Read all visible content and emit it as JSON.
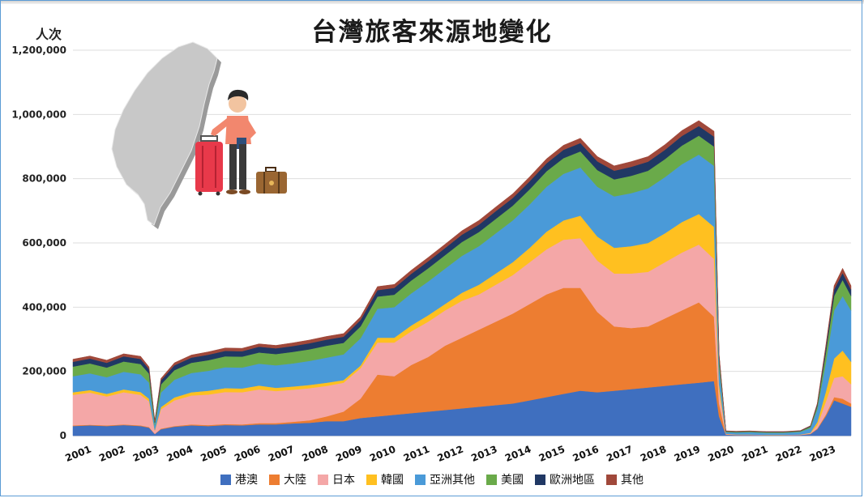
{
  "chart_data": {
    "type": "area",
    "title": "台灣旅客來源地變化",
    "ylabel": "人次",
    "ylim": [
      0,
      1200000
    ],
    "y_ticks": [
      "0",
      "200,000",
      "400,000",
      "600,000",
      "800,000",
      "1,000,000",
      "1,200,000"
    ],
    "y_tick_values": [
      0,
      200000,
      400000,
      600000,
      800000,
      1000000,
      1200000
    ],
    "x_ticks": [
      "2001",
      "2002",
      "2003",
      "2004",
      "2005",
      "2006",
      "2007",
      "2008",
      "2009",
      "2010",
      "2011",
      "2012",
      "2013",
      "2014",
      "2015",
      "2016",
      "2017",
      "2018",
      "2019",
      "2020",
      "2021",
      "2022",
      "2023"
    ],
    "x_range": [
      2001,
      2024
    ],
    "grid": true,
    "legend_position": "bottom",
    "x": [
      2001.0,
      2001.5,
      2002.0,
      2002.5,
      2003.0,
      2003.25,
      2003.42,
      2003.6,
      2004.0,
      2004.5,
      2005.0,
      2005.5,
      2006.0,
      2006.5,
      2007.0,
      2007.5,
      2008.0,
      2008.5,
      2009.0,
      2009.5,
      2010.0,
      2010.5,
      2011.0,
      2011.5,
      2012.0,
      2012.5,
      2013.0,
      2013.5,
      2014.0,
      2014.5,
      2015.0,
      2015.5,
      2016.0,
      2016.5,
      2017.0,
      2017.5,
      2018.0,
      2018.5,
      2019.0,
      2019.5,
      2019.95,
      2020.1,
      2020.3,
      2020.6,
      2021.0,
      2021.5,
      2022.0,
      2022.5,
      2022.8,
      2023.0,
      2023.25,
      2023.5,
      2023.75,
      2024.0
    ],
    "series": [
      {
        "name": "港澳",
        "color": "#3f6fbf",
        "values": [
          30000,
          32000,
          30000,
          33000,
          30000,
          25000,
          5000,
          20000,
          28000,
          32000,
          30000,
          33000,
          32000,
          35000,
          35000,
          38000,
          40000,
          45000,
          45000,
          55000,
          60000,
          65000,
          70000,
          75000,
          80000,
          85000,
          90000,
          95000,
          100000,
          110000,
          120000,
          130000,
          140000,
          135000,
          140000,
          145000,
          150000,
          155000,
          160000,
          165000,
          170000,
          60000,
          3000,
          2000,
          2000,
          1500,
          1500,
          2000,
          5000,
          20000,
          60000,
          110000,
          100000,
          90000
        ]
      },
      {
        "name": "大陸",
        "color": "#ed7d31",
        "values": [
          2000,
          2000,
          2000,
          2000,
          2000,
          2000,
          500,
          2000,
          2000,
          3000,
          3000,
          3000,
          3000,
          4000,
          4000,
          5000,
          8000,
          15000,
          30000,
          60000,
          130000,
          120000,
          150000,
          170000,
          200000,
          220000,
          240000,
          260000,
          280000,
          300000,
          320000,
          330000,
          320000,
          250000,
          200000,
          190000,
          190000,
          210000,
          230000,
          250000,
          200000,
          40000,
          1000,
          500,
          500,
          300,
          300,
          500,
          1000,
          2000,
          5000,
          10000,
          15000,
          10000
        ]
      },
      {
        "name": "日本",
        "color": "#f4a7a7",
        "values": [
          95000,
          100000,
          90000,
          100000,
          95000,
          80000,
          10000,
          60000,
          80000,
          90000,
          95000,
          100000,
          100000,
          105000,
          100000,
          100000,
          100000,
          95000,
          90000,
          95000,
          100000,
          105000,
          105000,
          110000,
          110000,
          115000,
          110000,
          115000,
          120000,
          130000,
          140000,
          150000,
          155000,
          160000,
          165000,
          170000,
          170000,
          175000,
          180000,
          180000,
          180000,
          40000,
          1500,
          1000,
          1000,
          800,
          800,
          1000,
          2000,
          10000,
          40000,
          60000,
          70000,
          60000
        ]
      },
      {
        "name": "韓國",
        "color": "#ffc020",
        "values": [
          8000,
          8000,
          8000,
          9000,
          9000,
          8000,
          2000,
          7000,
          9000,
          10000,
          12000,
          12000,
          12000,
          12000,
          10000,
          10000,
          10000,
          10000,
          8000,
          8000,
          15000,
          15000,
          18000,
          20000,
          20000,
          25000,
          30000,
          35000,
          40000,
          45000,
          55000,
          60000,
          70000,
          75000,
          80000,
          85000,
          90000,
          90000,
          95000,
          95000,
          100000,
          20000,
          500,
          300,
          300,
          200,
          200,
          300,
          1000,
          10000,
          30000,
          60000,
          80000,
          70000
        ]
      },
      {
        "name": "亞洲其他",
        "color": "#4a9ad8",
        "values": [
          50000,
          52000,
          52000,
          55000,
          55000,
          50000,
          15000,
          45000,
          55000,
          60000,
          62000,
          65000,
          65000,
          68000,
          70000,
          72000,
          75000,
          78000,
          80000,
          85000,
          90000,
          95000,
          100000,
          105000,
          110000,
          115000,
          120000,
          125000,
          130000,
          135000,
          140000,
          145000,
          150000,
          155000,
          160000,
          165000,
          170000,
          175000,
          180000,
          185000,
          190000,
          60000,
          5000,
          6000,
          7000,
          6000,
          6000,
          8000,
          15000,
          40000,
          90000,
          150000,
          170000,
          160000
        ]
      },
      {
        "name": "美國",
        "color": "#6aaa4a",
        "values": [
          30000,
          31000,
          30000,
          32000,
          32000,
          28000,
          8000,
          25000,
          30000,
          32000,
          33000,
          34000,
          34000,
          35000,
          35000,
          36000,
          36000,
          37000,
          36000,
          37000,
          38000,
          39000,
          40000,
          41000,
          42000,
          43000,
          44000,
          45000,
          46000,
          47000,
          48000,
          49000,
          50000,
          52000,
          53000,
          54000,
          55000,
          56000,
          58000,
          59000,
          60000,
          20000,
          2000,
          2000,
          2000,
          2000,
          2000,
          2000,
          4000,
          10000,
          30000,
          45000,
          50000,
          45000
        ]
      },
      {
        "name": "歐洲地區",
        "color": "#203864",
        "values": [
          15000,
          15000,
          15000,
          16000,
          16000,
          14000,
          4000,
          13000,
          15000,
          16000,
          17000,
          17000,
          17000,
          18000,
          18000,
          18000,
          19000,
          19000,
          19000,
          20000,
          20000,
          21000,
          21000,
          22000,
          22000,
          23000,
          23000,
          24000,
          24000,
          25000,
          25000,
          26000,
          26000,
          27000,
          27000,
          28000,
          28000,
          29000,
          30000,
          30000,
          31000,
          10000,
          1000,
          1000,
          1000,
          1000,
          1000,
          1000,
          2000,
          5000,
          15000,
          20000,
          22000,
          20000
        ]
      },
      {
        "name": "其他",
        "color": "#a0483a",
        "values": [
          8000,
          8000,
          8000,
          8000,
          8000,
          7000,
          2000,
          6000,
          8000,
          8000,
          9000,
          9000,
          9000,
          9000,
          9000,
          10000,
          10000,
          10000,
          10000,
          10000,
          11000,
          11000,
          11000,
          12000,
          12000,
          12000,
          13000,
          13000,
          13000,
          14000,
          14000,
          14000,
          15000,
          15000,
          15000,
          16000,
          16000,
          16000,
          17000,
          17000,
          17000,
          6000,
          1000,
          1000,
          1000,
          1000,
          1000,
          1000,
          1000,
          3000,
          8000,
          12000,
          14000,
          12000
        ]
      }
    ]
  }
}
